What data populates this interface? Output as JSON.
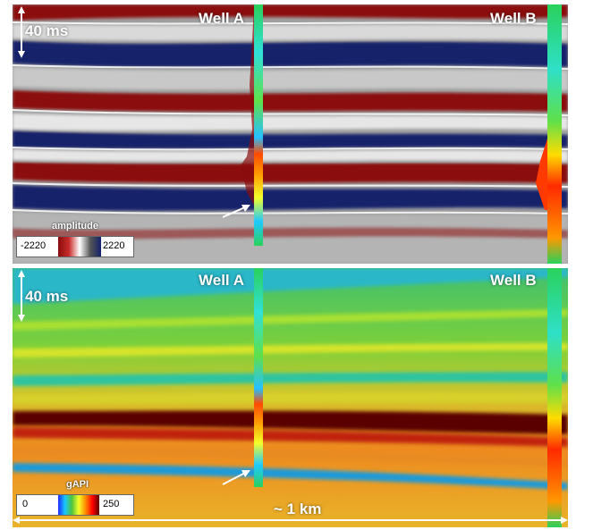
{
  "top_panel": {
    "scale_label": "40 ms",
    "well_a_label": "Well A",
    "well_b_label": "Well B",
    "colorbar_title": "amplitude",
    "colorbar_min": "-2220",
    "colorbar_max": "2220"
  },
  "bottom_panel": {
    "scale_label": "40 ms",
    "well_a_label": "Well A",
    "well_b_label": "Well B",
    "colorbar_title": "gAPI",
    "colorbar_min": "0",
    "colorbar_max": "250",
    "distance_label": "~ 1 km"
  },
  "colors": {
    "seismic_red": "#8b0d0d",
    "seismic_blue": "#13206a",
    "seismic_white": "#e6e6e6",
    "gamma_green": "#4fc43a",
    "gamma_orange": "#ee8a1f",
    "gamma_darkred": "#5a0000"
  }
}
